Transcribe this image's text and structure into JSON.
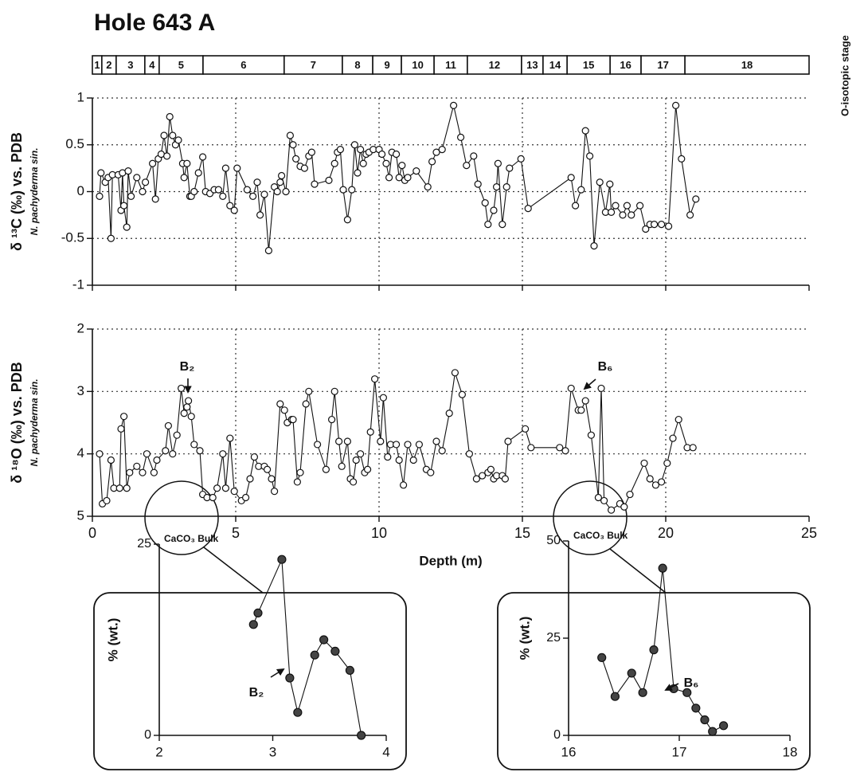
{
  "chart_data": [
    {
      "type": "stages",
      "title": "Hole 643 A",
      "axis_label": "O-isotopic stage",
      "labels": [
        "1",
        "2",
        "3",
        "4",
        "5",
        "6",
        "7",
        "8",
        "9",
        "10",
        "11",
        "12",
        "13",
        "14",
        "15",
        "16",
        "17",
        "18"
      ],
      "boundaries": [
        0,
        0.33,
        0.83,
        1.83,
        2.33,
        3.86,
        6.69,
        8.72,
        9.78,
        10.78,
        11.92,
        13.08,
        14.97,
        15.72,
        16.56,
        18.06,
        19.14,
        20.67,
        25
      ],
      "xlim": [
        0,
        25
      ]
    },
    {
      "type": "line",
      "y_label": "δ ¹³C (‰) vs. PDB",
      "y_sublabel": "N. pachyderma sin.",
      "x": [
        0.25,
        0.3,
        0.45,
        0.55,
        0.65,
        0.7,
        0.9,
        1.0,
        1.05,
        1.1,
        1.2,
        1.25,
        1.35,
        1.55,
        1.75,
        1.85,
        2.1,
        2.2,
        2.3,
        2.4,
        2.5,
        2.6,
        2.7,
        2.8,
        2.9,
        3.0,
        3.15,
        3.2,
        3.3,
        3.4,
        3.45,
        3.55,
        3.7,
        3.85,
        3.95,
        4.1,
        4.25,
        4.4,
        4.55,
        4.65,
        4.8,
        4.95,
        5.05,
        5.4,
        5.6,
        5.75,
        5.85,
        6.0,
        6.15,
        6.35,
        6.45,
        6.55,
        6.6,
        6.75,
        6.9,
        7.0,
        7.1,
        7.25,
        7.4,
        7.55,
        7.65,
        7.75,
        8.25,
        8.45,
        8.55,
        8.65,
        8.75,
        8.9,
        9.05,
        9.15,
        9.25,
        9.35,
        9.45,
        9.55,
        9.65,
        9.8,
        10.0,
        10.1,
        10.25,
        10.35,
        10.45,
        10.6,
        10.7,
        10.8,
        10.9,
        11.0,
        11.3,
        11.7,
        11.85,
        12.0,
        12.2,
        12.6,
        12.85,
        13.05,
        13.3,
        13.45,
        13.7,
        13.8,
        14.0,
        14.1,
        14.15,
        14.3,
        14.45,
        14.55,
        14.95,
        15.2,
        16.7,
        16.85,
        17.05,
        17.2,
        17.35,
        17.5,
        17.7,
        17.9,
        18.05,
        18.1,
        18.25,
        18.5,
        18.65,
        18.8,
        19.1,
        19.3,
        19.45,
        19.6,
        19.85,
        20.1,
        20.35,
        20.55,
        20.85,
        21.05
      ],
      "values": [
        -0.05,
        0.2,
        0.1,
        0.15,
        -0.5,
        0.18,
        0.18,
        -0.2,
        0.2,
        -0.15,
        -0.38,
        0.22,
        -0.05,
        0.15,
        0.0,
        0.1,
        0.3,
        -0.08,
        0.35,
        0.4,
        0.6,
        0.38,
        0.8,
        0.6,
        0.5,
        0.55,
        0.3,
        0.15,
        0.3,
        -0.05,
        -0.05,
        0.0,
        0.2,
        0.37,
        0.0,
        -0.02,
        0.02,
        0.02,
        -0.05,
        0.25,
        -0.15,
        -0.2,
        0.25,
        0.02,
        -0.05,
        0.1,
        -0.25,
        -0.03,
        -0.63,
        0.05,
        0.0,
        0.1,
        0.17,
        0.0,
        0.6,
        0.5,
        0.35,
        0.27,
        0.25,
        0.38,
        0.42,
        0.08,
        0.12,
        0.3,
        0.42,
        0.45,
        0.02,
        -0.3,
        0.02,
        0.5,
        0.2,
        0.45,
        0.3,
        0.4,
        0.42,
        0.45,
        0.45,
        0.4,
        0.3,
        0.15,
        0.42,
        0.4,
        0.15,
        0.28,
        0.12,
        0.15,
        0.22,
        0.05,
        0.32,
        0.42,
        0.45,
        0.92,
        0.58,
        0.28,
        0.38,
        0.08,
        -0.12,
        -0.35,
        -0.2,
        0.05,
        0.3,
        -0.35,
        0.05,
        0.25,
        0.35,
        -0.18,
        0.15,
        -0.15,
        0.02,
        0.65,
        0.38,
        -0.58,
        0.1,
        -0.22,
        0.08,
        -0.22,
        -0.15,
        -0.25,
        -0.15,
        -0.25,
        -0.15,
        -0.4,
        -0.35,
        -0.35,
        -0.35,
        -0.37,
        0.92,
        0.35,
        -0.25,
        -0.08
      ],
      "xlim": [
        0,
        25
      ],
      "xticks": [
        0,
        5,
        10,
        15,
        20,
        25
      ],
      "xtick_labels": false,
      "ylim": [
        -1,
        1
      ],
      "yticks": [
        -1,
        -0.5,
        0,
        0.5,
        1
      ],
      "grid": true,
      "color": "#111111",
      "marker_fill": "#ffffff"
    },
    {
      "type": "line",
      "y_label": "δ ¹⁸O (‰) vs. PDB",
      "y_sublabel": "N. pachyderma sin.",
      "x_label": "Depth (m)",
      "x": [
        0.25,
        0.35,
        0.5,
        0.65,
        0.75,
        0.95,
        1.0,
        1.1,
        1.2,
        1.3,
        1.55,
        1.75,
        1.9,
        2.15,
        2.25,
        2.55,
        2.65,
        2.8,
        2.95,
        3.1,
        3.2,
        3.3,
        3.35,
        3.45,
        3.55,
        3.75,
        3.85,
        4.0,
        4.2,
        4.35,
        4.55,
        4.65,
        4.8,
        4.95,
        5.2,
        5.35,
        5.5,
        5.65,
        5.8,
        6.0,
        6.1,
        6.25,
        6.35,
        6.55,
        6.7,
        6.8,
        6.95,
        7.0,
        7.15,
        7.25,
        7.45,
        7.55,
        7.85,
        8.15,
        8.35,
        8.45,
        8.6,
        8.7,
        8.9,
        9.0,
        9.1,
        9.2,
        9.35,
        9.5,
        9.6,
        9.7,
        9.85,
        10.05,
        10.15,
        10.3,
        10.4,
        10.6,
        10.7,
        10.85,
        11.0,
        11.2,
        11.4,
        11.65,
        11.8,
        12.0,
        12.2,
        12.45,
        12.65,
        12.9,
        13.15,
        13.4,
        13.6,
        13.8,
        13.9,
        14.0,
        14.1,
        14.3,
        14.4,
        14.5,
        15.1,
        15.3,
        16.3,
        16.5,
        16.7,
        16.95,
        17.05,
        17.2,
        17.4,
        17.65,
        17.75,
        17.85,
        18.1,
        18.4,
        18.55,
        18.75,
        19.25,
        19.45,
        19.65,
        19.85,
        20.05,
        20.25,
        20.45,
        20.75,
        20.95
      ],
      "values": [
        4.0,
        4.8,
        4.75,
        4.1,
        4.55,
        4.55,
        3.6,
        3.4,
        4.55,
        4.3,
        4.2,
        4.3,
        4.0,
        4.3,
        4.1,
        3.95,
        3.55,
        4.0,
        3.7,
        2.95,
        3.35,
        3.25,
        3.15,
        3.4,
        3.85,
        3.95,
        4.65,
        4.7,
        4.7,
        4.55,
        4.0,
        4.55,
        3.75,
        4.6,
        4.75,
        4.7,
        4.4,
        4.05,
        4.2,
        4.2,
        4.25,
        4.4,
        4.6,
        3.2,
        3.3,
        3.5,
        3.45,
        3.45,
        4.45,
        4.3,
        3.2,
        3.0,
        3.85,
        4.25,
        3.45,
        3.0,
        3.8,
        4.2,
        3.8,
        4.4,
        4.45,
        4.1,
        4.0,
        4.3,
        4.25,
        3.65,
        2.8,
        3.8,
        3.1,
        4.05,
        3.85,
        3.85,
        4.1,
        4.5,
        3.85,
        4.1,
        3.85,
        4.25,
        4.3,
        3.8,
        3.95,
        3.35,
        2.7,
        3.05,
        4.0,
        4.4,
        4.35,
        4.3,
        4.25,
        4.4,
        4.35,
        4.35,
        4.4,
        3.8,
        3.6,
        3.9,
        3.9,
        3.95,
        2.95,
        3.3,
        3.3,
        3.15,
        3.7,
        4.7,
        2.95,
        4.75,
        4.9,
        4.8,
        4.85,
        4.65,
        4.15,
        4.4,
        4.5,
        4.45,
        4.15,
        3.75,
        3.45,
        3.9,
        3.9
      ],
      "xlim": [
        0,
        25
      ],
      "xticks": [
        0,
        5,
        10,
        15,
        20,
        25
      ],
      "xtick_labels": true,
      "ylim": [
        5,
        2
      ],
      "yticks": [
        5,
        4,
        3,
        2
      ],
      "grid": true,
      "color": "#111111",
      "marker_fill": "#ffffff",
      "annotations": [
        "B₂",
        "B₆"
      ]
    },
    {
      "type": "line",
      "title": "CaCO₃ Bulk",
      "y_label": "% (wt.)",
      "x": [
        2.83,
        2.87,
        3.08,
        3.15,
        3.22,
        3.37,
        3.45,
        3.55,
        3.68,
        3.78
      ],
      "values": [
        14.5,
        16,
        23,
        7.5,
        3,
        10.5,
        12.5,
        11,
        8.5,
        0
      ],
      "xlim": [
        2,
        4
      ],
      "xticks": [
        2,
        3,
        4
      ],
      "xtick_labels": true,
      "ylim": [
        0,
        25
      ],
      "yticks": [
        0,
        25
      ],
      "grid": false,
      "color": "#111111",
      "marker_fill": "#444444",
      "annotations": [
        "B₂"
      ]
    },
    {
      "type": "line",
      "title": "CaCO₃ Bulk",
      "y_label": "% (wt.)",
      "x": [
        16.3,
        16.42,
        16.57,
        16.67,
        16.77,
        16.85,
        16.95,
        17.07,
        17.15,
        17.23,
        17.3,
        17.4
      ],
      "values": [
        20,
        10,
        16,
        11,
        22,
        43,
        12,
        11,
        7,
        4,
        1,
        2.5
      ],
      "xlim": [
        16,
        18
      ],
      "xticks": [
        16,
        17,
        18
      ],
      "xtick_labels": true,
      "ylim": [
        0,
        50
      ],
      "yticks": [
        0,
        25,
        50
      ],
      "grid": false,
      "color": "#111111",
      "marker_fill": "#444444",
      "annotations": [
        "B₆"
      ]
    }
  ]
}
